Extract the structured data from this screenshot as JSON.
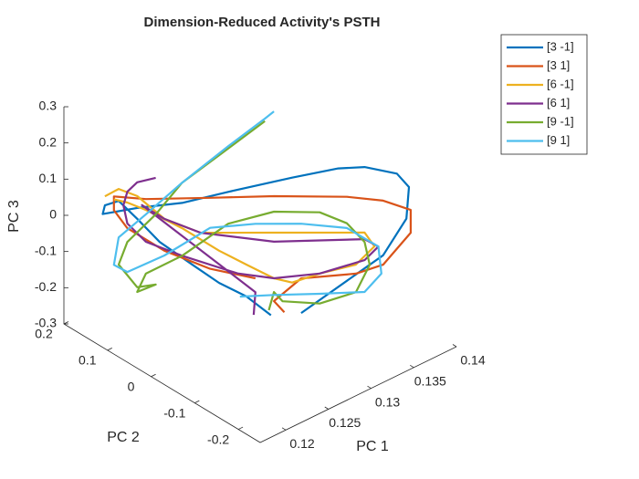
{
  "chart_data": {
    "type": "line3d",
    "title": "Dimension-Reduced Activity's PSTH",
    "xlabel": "PC 1",
    "ylabel": "PC 2",
    "zlabel": "PC 3",
    "xlim": [
      0.117,
      0.14
    ],
    "ylim": [
      -0.25,
      0.2
    ],
    "zlim": [
      -0.3,
      0.3
    ],
    "xticks": [
      0.12,
      0.125,
      0.13,
      0.135,
      0.14
    ],
    "yticks": [
      -0.2,
      -0.1,
      0,
      0.1,
      0.2
    ],
    "zticks": [
      -0.3,
      -0.2,
      -0.1,
      0,
      0.1,
      0.2,
      0.3
    ],
    "legend": "upper right",
    "series": [
      {
        "name": "[3 -1]",
        "color": "#0072BD",
        "x": [
          0.1309,
          0.1357,
          0.1371,
          0.1372,
          0.1365,
          0.1346,
          0.1331,
          0.1304,
          0.1266,
          0.1239,
          0.1213,
          0.1193,
          0.1194,
          0.1202,
          0.1213,
          0.1226,
          0.1245,
          0.1261,
          0.1277,
          0.1291
        ],
        "y": [
          -0.072,
          -0.166,
          -0.192,
          -0.196,
          -0.182,
          -0.145,
          -0.114,
          -0.061,
          0.011,
          0.064,
          0.116,
          0.156,
          0.153,
          0.137,
          0.116,
          0.09,
          0.053,
          0.022,
          -0.009,
          -0.038
        ],
        "z": [
          -0.232,
          -0.059,
          0.045,
          0.134,
          0.169,
          0.182,
          0.173,
          0.14,
          0.092,
          0.054,
          0.032,
          0.009,
          0.034,
          0.049,
          0.002,
          -0.058,
          -0.115,
          -0.162,
          -0.195,
          -0.242
        ]
      },
      {
        "name": "[3 1]",
        "color": "#D95319",
        "x": [
          0.1299,
          0.1293,
          0.1309,
          0.1341,
          0.1357,
          0.1373,
          0.1373,
          0.1357,
          0.1336,
          0.1293,
          0.1256,
          0.1218,
          0.1199,
          0.1199,
          0.1207,
          0.1229,
          0.1256,
          0.1282
        ],
        "y": [
          -0.053,
          -0.041,
          -0.072,
          -0.135,
          -0.166,
          -0.198,
          -0.198,
          -0.166,
          -0.124,
          -0.041,
          0.033,
          0.106,
          0.142,
          0.142,
          0.127,
          0.085,
          0.033,
          -0.02
        ],
        "z": [
          -0.232,
          -0.203,
          -0.136,
          -0.114,
          -0.085,
          0.008,
          0.071,
          0.092,
          0.096,
          0.087,
          0.071,
          0.058,
          0.061,
          0.023,
          -0.025,
          -0.082,
          -0.125,
          -0.143
        ]
      },
      {
        "name": "[6 -1]",
        "color": "#EDB120",
        "x": [
          0.1194,
          0.1202,
          0.1213,
          0.1229,
          0.125,
          0.1293,
          0.1346,
          0.1352,
          0.1341,
          0.132,
          0.1304,
          0.1293,
          0.1277,
          0.1261,
          0.1239,
          0.1218,
          0.1207,
          0.1199
        ],
        "y": [
          0.153,
          0.137,
          0.116,
          0.085,
          0.043,
          -0.041,
          -0.145,
          -0.156,
          -0.135,
          -0.093,
          -0.061,
          -0.041,
          -0.009,
          0.022,
          0.064,
          0.106,
          0.127,
          0.142
        ],
        "z": [
          0.059,
          0.082,
          0.065,
          0.006,
          -0.026,
          -0.014,
          0.001,
          -0.036,
          -0.089,
          -0.12,
          -0.15,
          -0.14,
          -0.107,
          -0.073,
          -0.016,
          0.028,
          0.046,
          0.053
        ]
      },
      {
        "name": "[6 1]",
        "color": "#7E2F8E",
        "x": [
          0.1224,
          0.1213,
          0.1207,
          0.1205,
          0.1207,
          0.1218,
          0.1239,
          0.1272,
          0.1293,
          0.132,
          0.1346,
          0.1354,
          0.1346,
          0.1293,
          0.125,
          0.1229,
          0.1216,
          0.1282,
          0.1281
        ],
        "y": [
          0.095,
          0.116,
          0.127,
          0.132,
          0.127,
          0.106,
          0.064,
          0.001,
          -0.041,
          -0.093,
          -0.145,
          -0.161,
          -0.145,
          -0.041,
          0.043,
          0.085,
          0.111,
          -0.02,
          -0.018
        ],
        "z": [
          0.118,
          0.103,
          0.076,
          0.037,
          -0.012,
          -0.06,
          -0.092,
          -0.133,
          -0.14,
          -0.12,
          -0.075,
          -0.035,
          -0.017,
          -0.039,
          -0.026,
          0.006,
          0.04,
          -0.181,
          -0.244
        ]
      },
      {
        "name": "[9 -1]",
        "color": "#77AC30",
        "x": [
          0.1288,
          0.1261,
          0.1239,
          0.1224,
          0.1207,
          0.1202,
          0.1213,
          0.1224,
          0.1213,
          0.1218,
          0.1239,
          0.1266,
          0.1293,
          0.132,
          0.1336,
          0.1346,
          0.1349,
          0.1341,
          0.132,
          0.1298,
          0.1293,
          0.129
        ],
        "y": [
          -0.03,
          0.022,
          0.064,
          0.095,
          0.127,
          0.137,
          0.116,
          0.095,
          0.116,
          0.106,
          0.064,
          0.011,
          -0.041,
          -0.093,
          -0.124,
          -0.145,
          -0.151,
          -0.135,
          -0.093,
          -0.051,
          -0.041,
          -0.035
        ],
        "z": [
          0.292,
          0.191,
          0.11,
          0.017,
          -0.063,
          -0.127,
          -0.187,
          -0.177,
          -0.2,
          -0.148,
          -0.092,
          0.004,
          0.044,
          0.049,
          0.023,
          -0.025,
          -0.087,
          -0.165,
          -0.203,
          -0.202,
          -0.178,
          -0.229
        ]
      },
      {
        "name": "[9 1]",
        "color": "#4DBEEE",
        "x": [
          0.1293,
          0.1288,
          0.1266,
          0.1239,
          0.1218,
          0.1202,
          0.1199,
          0.1207,
          0.1229,
          0.1256,
          0.1282,
          0.1309,
          0.1336,
          0.1354,
          0.1356,
          0.1346,
          0.132,
          0.1293,
          0.1273
        ],
        "y": [
          -0.041,
          -0.03,
          0.011,
          0.064,
          0.106,
          0.137,
          0.142,
          0.127,
          0.085,
          0.033,
          -0.02,
          -0.072,
          -0.124,
          -0.161,
          -0.164,
          -0.145,
          -0.093,
          -0.041,
          -0.002
        ],
        "z": [
          0.321,
          0.299,
          0.218,
          0.11,
          0.016,
          -0.052,
          -0.128,
          -0.146,
          -0.095,
          -0.012,
          0.008,
          0.015,
          0.01,
          -0.035,
          -0.11,
          -0.163,
          -0.176,
          -0.186,
          -0.196
        ]
      }
    ]
  }
}
